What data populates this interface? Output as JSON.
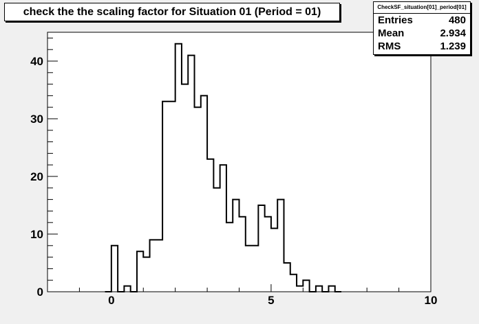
{
  "title": "check the the scaling factor for Situation 01 (Period = 01)",
  "stats": {
    "name": "CheckSF_situation[01]_period[01]",
    "rows": [
      {
        "label": "Entries",
        "value": "480"
      },
      {
        "label": "Mean",
        "value": "2.934"
      },
      {
        "label": "RMS",
        "value": "1.239"
      }
    ]
  },
  "colors": {
    "background": "#f0f0f0",
    "frame": "#ffffff",
    "line": "#000000"
  },
  "chart_data": {
    "type": "bar",
    "style": "step-histogram",
    "title": "check the the scaling factor for Situation 01 (Period = 01)",
    "xlabel": "",
    "ylabel": "",
    "xlim": [
      -2,
      10
    ],
    "ylim": [
      0,
      45
    ],
    "xticks": [
      0,
      5,
      10
    ],
    "yticks": [
      0,
      10,
      20,
      30,
      40
    ],
    "bin_width": 0.2,
    "bins": [
      {
        "x": -0.2,
        "y": 0
      },
      {
        "x": 0.0,
        "y": 8
      },
      {
        "x": 0.2,
        "y": 0
      },
      {
        "x": 0.4,
        "y": 1
      },
      {
        "x": 0.6,
        "y": 0
      },
      {
        "x": 0.8,
        "y": 7
      },
      {
        "x": 1.0,
        "y": 6
      },
      {
        "x": 1.2,
        "y": 9
      },
      {
        "x": 1.4,
        "y": 9
      },
      {
        "x": 1.6,
        "y": 33
      },
      {
        "x": 1.8,
        "y": 33
      },
      {
        "x": 2.0,
        "y": 43
      },
      {
        "x": 2.2,
        "y": 36
      },
      {
        "x": 2.4,
        "y": 41
      },
      {
        "x": 2.6,
        "y": 32
      },
      {
        "x": 2.8,
        "y": 34
      },
      {
        "x": 3.0,
        "y": 23
      },
      {
        "x": 3.2,
        "y": 18
      },
      {
        "x": 3.4,
        "y": 22
      },
      {
        "x": 3.6,
        "y": 12
      },
      {
        "x": 3.8,
        "y": 16
      },
      {
        "x": 4.0,
        "y": 13
      },
      {
        "x": 4.2,
        "y": 8
      },
      {
        "x": 4.4,
        "y": 8
      },
      {
        "x": 4.6,
        "y": 15
      },
      {
        "x": 4.8,
        "y": 13
      },
      {
        "x": 5.0,
        "y": 11
      },
      {
        "x": 5.2,
        "y": 16
      },
      {
        "x": 5.4,
        "y": 5
      },
      {
        "x": 5.6,
        "y": 3
      },
      {
        "x": 5.8,
        "y": 1
      },
      {
        "x": 6.0,
        "y": 2
      },
      {
        "x": 6.2,
        "y": 0
      },
      {
        "x": 6.4,
        "y": 1
      },
      {
        "x": 6.6,
        "y": 0
      },
      {
        "x": 6.8,
        "y": 1
      },
      {
        "x": 7.0,
        "y": 0
      }
    ],
    "grid": false,
    "legend": "none"
  }
}
